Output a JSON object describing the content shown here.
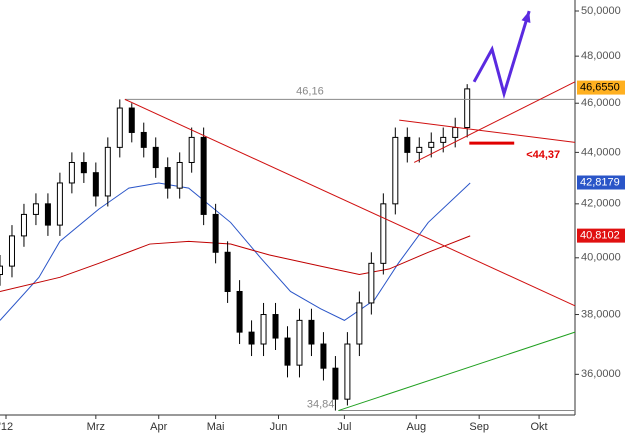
{
  "chart_data": {
    "type": "candlestick",
    "x": [
      0,
      4,
      8,
      12,
      16,
      20,
      24,
      28,
      32,
      36,
      40,
      44,
      48,
      52,
      56,
      60,
      64,
      68,
      72,
      76,
      80,
      84,
      88,
      92,
      96,
      100,
      104,
      108,
      112,
      116,
      120,
      124,
      128,
      132,
      136,
      140,
      144,
      148,
      152,
      156
    ],
    "open": [
      39.4,
      39.7,
      40.8,
      41.6,
      42.0,
      41.2,
      42.8,
      43.6,
      43.2,
      42.3,
      44.2,
      45.8,
      44.8,
      44.2,
      43.4,
      42.6,
      43.6,
      44.6,
      41.6,
      40.2,
      38.8,
      37.4,
      37.0,
      38.0,
      37.2,
      36.3,
      37.8,
      37.0,
      36.2,
      35.2,
      37.0,
      38.4,
      39.8,
      42.0,
      44.6,
      44.0,
      44.2,
      44.4,
      44.6,
      45.0
    ],
    "high": [
      40.1,
      41.2,
      42.0,
      42.4,
      42.4,
      43.2,
      44.0,
      44.0,
      43.6,
      44.6,
      46.16,
      46.0,
      45.2,
      44.6,
      43.8,
      44.0,
      45.0,
      45.0,
      42.0,
      40.6,
      39.2,
      37.8,
      38.4,
      38.4,
      37.6,
      38.2,
      38.2,
      37.4,
      36.6,
      37.4,
      38.8,
      40.2,
      42.4,
      45.0,
      45.0,
      44.6,
      44.8,
      45.0,
      45.4,
      46.8
    ],
    "low": [
      39.0,
      39.3,
      40.4,
      41.2,
      40.8,
      40.8,
      42.4,
      42.8,
      41.9,
      41.9,
      43.8,
      44.4,
      43.8,
      43.0,
      42.2,
      42.2,
      43.2,
      41.2,
      39.8,
      38.4,
      37.0,
      36.6,
      36.6,
      36.8,
      35.9,
      35.9,
      36.6,
      35.8,
      34.84,
      35.0,
      36.6,
      38.0,
      39.4,
      41.6,
      43.6,
      43.6,
      43.8,
      44.0,
      44.2,
      44.6
    ],
    "close": [
      39.7,
      40.8,
      41.6,
      42.0,
      41.2,
      42.8,
      43.6,
      43.2,
      42.3,
      44.2,
      45.8,
      44.8,
      44.2,
      43.4,
      42.6,
      43.6,
      44.6,
      41.6,
      40.2,
      38.8,
      37.4,
      37.0,
      38.0,
      37.2,
      36.3,
      37.8,
      37.0,
      36.2,
      35.2,
      37.0,
      38.4,
      39.8,
      42.0,
      44.6,
      44.0,
      44.2,
      44.4,
      44.6,
      45.0,
      46.6
    ],
    "color": "#000000",
    "log_scale": true,
    "ylim": [
      34.7,
      50.5
    ],
    "yticks": [
      {
        "value": 36,
        "label": "36,0000"
      },
      {
        "value": 38,
        "label": "38,0000"
      },
      {
        "value": 40,
        "label": "40,0000"
      },
      {
        "value": 42,
        "label": "42,0000"
      },
      {
        "value": 44,
        "label": "44,0000"
      },
      {
        "value": 46,
        "label": "46,0000"
      },
      {
        "value": 48,
        "label": "48,0000"
      },
      {
        "value": 50,
        "label": "50,0000"
      }
    ],
    "xlim": [
      0,
      192
    ],
    "xticks": [
      {
        "value": 2,
        "label": "'12"
      },
      {
        "value": 32,
        "label": "Mrz"
      },
      {
        "value": 53,
        "label": "Apr"
      },
      {
        "value": 72,
        "label": "Mai"
      },
      {
        "value": 93,
        "label": "Jun"
      },
      {
        "value": 115,
        "label": "Jul"
      },
      {
        "value": 139,
        "label": "Aug"
      },
      {
        "value": 160,
        "label": "Sep"
      },
      {
        "value": 180,
        "label": "Okt"
      }
    ],
    "grid": false,
    "moving_averages": [
      {
        "color": "#2a55c8",
        "x": [
          0,
          13,
          20,
          33,
          43,
          53,
          63,
          77,
          87,
          97,
          107,
          115,
          125,
          133,
          143,
          157
        ],
        "values": [
          37.8,
          39.3,
          40.6,
          41.8,
          42.6,
          42.8,
          42.6,
          41.3,
          40.0,
          38.8,
          38.2,
          37.8,
          38.5,
          39.8,
          41.3,
          42.8
        ]
      },
      {
        "color": "#c00000",
        "x": [
          0,
          20,
          33,
          50,
          63,
          77,
          90,
          107,
          120,
          130,
          143,
          157
        ],
        "values": [
          38.8,
          39.3,
          39.8,
          40.5,
          40.6,
          40.5,
          40.1,
          39.7,
          39.4,
          39.6,
          40.2,
          40.8
        ]
      }
    ],
    "lines": [
      {
        "color": "#888888",
        "width": 1,
        "x": [
          41.7,
          192
        ],
        "values": [
          46.16,
          46.16
        ],
        "label": "46,16",
        "label_position": "above-middle"
      },
      {
        "color": "#888888",
        "width": 1,
        "x": [
          113,
          192
        ],
        "values": [
          34.84,
          34.84
        ],
        "label": "34,84",
        "label_position": "before-start"
      },
      {
        "color": "#d01010",
        "width": 1,
        "x": [
          41.7,
          192
        ],
        "values": [
          46.16,
          38.3
        ]
      },
      {
        "color": "#d01010",
        "width": 1,
        "x": [
          133.3,
          192
        ],
        "values": [
          45.3,
          44.4
        ]
      },
      {
        "color": "#d01010",
        "width": 1,
        "x": [
          138.3,
          192
        ],
        "values": [
          43.6,
          46.9
        ]
      },
      {
        "color": "#20a020",
        "width": 1,
        "x": [
          113,
          192
        ],
        "values": [
          34.84,
          37.4
        ]
      },
      {
        "color": "#e00000",
        "width": 3,
        "x": [
          156.7,
          171.7
        ],
        "values": [
          44.37,
          44.37
        ],
        "label": "<44,37",
        "label_position": "below-end"
      },
      {
        "color": "#5a2ae0",
        "width": 3,
        "x": [
          158.3,
          164.3,
          168.3,
          176.7
        ],
        "values": [
          46.9,
          48.3,
          46.4,
          50.0
        ],
        "arrow": true
      }
    ],
    "price_labels": [
      {
        "value": 46.655,
        "label": "46,6550",
        "color": "#ffb020",
        "text_color": "#000000"
      },
      {
        "value": 42.8179,
        "label": "42,8179",
        "color": "#2a55c8",
        "text_color": "#ffffff"
      },
      {
        "value": 40.8102,
        "label": "40,8102",
        "color": "#e01010",
        "text_color": "#ffffff"
      }
    ]
  }
}
